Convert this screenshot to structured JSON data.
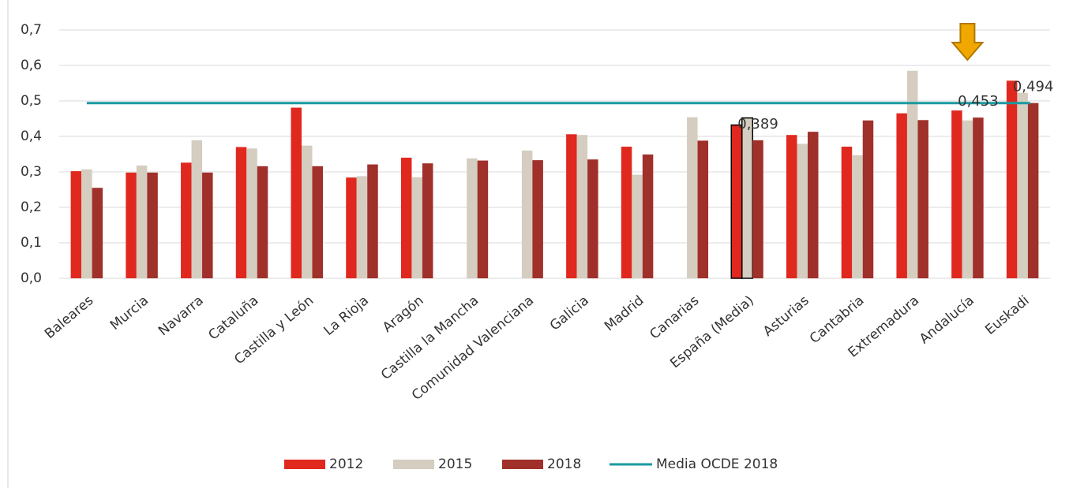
{
  "chart_data": {
    "type": "bar",
    "categories": [
      "Baleares",
      "Murcia",
      "Navarra",
      "Cataluña",
      "Castilla y León",
      "La Rioja",
      "Aragón",
      "Castilla la Mancha",
      "Comunidad Valenciana",
      "Galicia",
      "Madrid",
      "Canarias",
      "España (Media)",
      "Asturias",
      "Cantabria",
      "Extremadura",
      "Andalucía",
      "Euskadi"
    ],
    "series": [
      {
        "name": "2012",
        "color": "#e0281f",
        "values": [
          0.302,
          0.298,
          0.326,
          0.37,
          0.481,
          0.284,
          0.34,
          null,
          null,
          0.406,
          0.371,
          null,
          0.432,
          0.404,
          0.371,
          0.465,
          0.473,
          0.557
        ]
      },
      {
        "name": "2015",
        "color": "#d4cdc0",
        "values": [
          0.307,
          0.318,
          0.389,
          0.366,
          0.374,
          0.288,
          0.285,
          0.338,
          0.36,
          0.404,
          0.292,
          0.454,
          0.452,
          0.379,
          0.347,
          0.585,
          0.445,
          0.523
        ]
      },
      {
        "name": "2018",
        "color": "#a0302a",
        "values": [
          0.255,
          0.298,
          0.298,
          0.316,
          0.316,
          0.321,
          0.324,
          0.332,
          0.333,
          0.335,
          0.349,
          0.388,
          0.389,
          0.413,
          0.445,
          0.446,
          0.453,
          0.494
        ],
        "value_labels": [
          null,
          null,
          null,
          null,
          null,
          null,
          null,
          null,
          null,
          null,
          null,
          null,
          "0,389",
          null,
          null,
          null,
          "0,453",
          "0,494"
        ]
      }
    ],
    "reference_line": {
      "name": "Media OCDE 2018",
      "color": "#1a9aa0",
      "value": 0.494
    },
    "ylim": [
      0,
      0.7
    ],
    "yticks": [
      {
        "value": 0,
        "label": "0,0"
      },
      {
        "value": 0.1,
        "label": "0,1"
      },
      {
        "value": 0.2,
        "label": "0,2"
      },
      {
        "value": 0.3,
        "label": "0,3"
      },
      {
        "value": 0.4,
        "label": "0,4"
      },
      {
        "value": 0.5,
        "label": "0,5"
      },
      {
        "value": 0.6,
        "label": "0,6"
      },
      {
        "value": 0.7,
        "label": "0,7"
      }
    ],
    "grid": true
  }
}
